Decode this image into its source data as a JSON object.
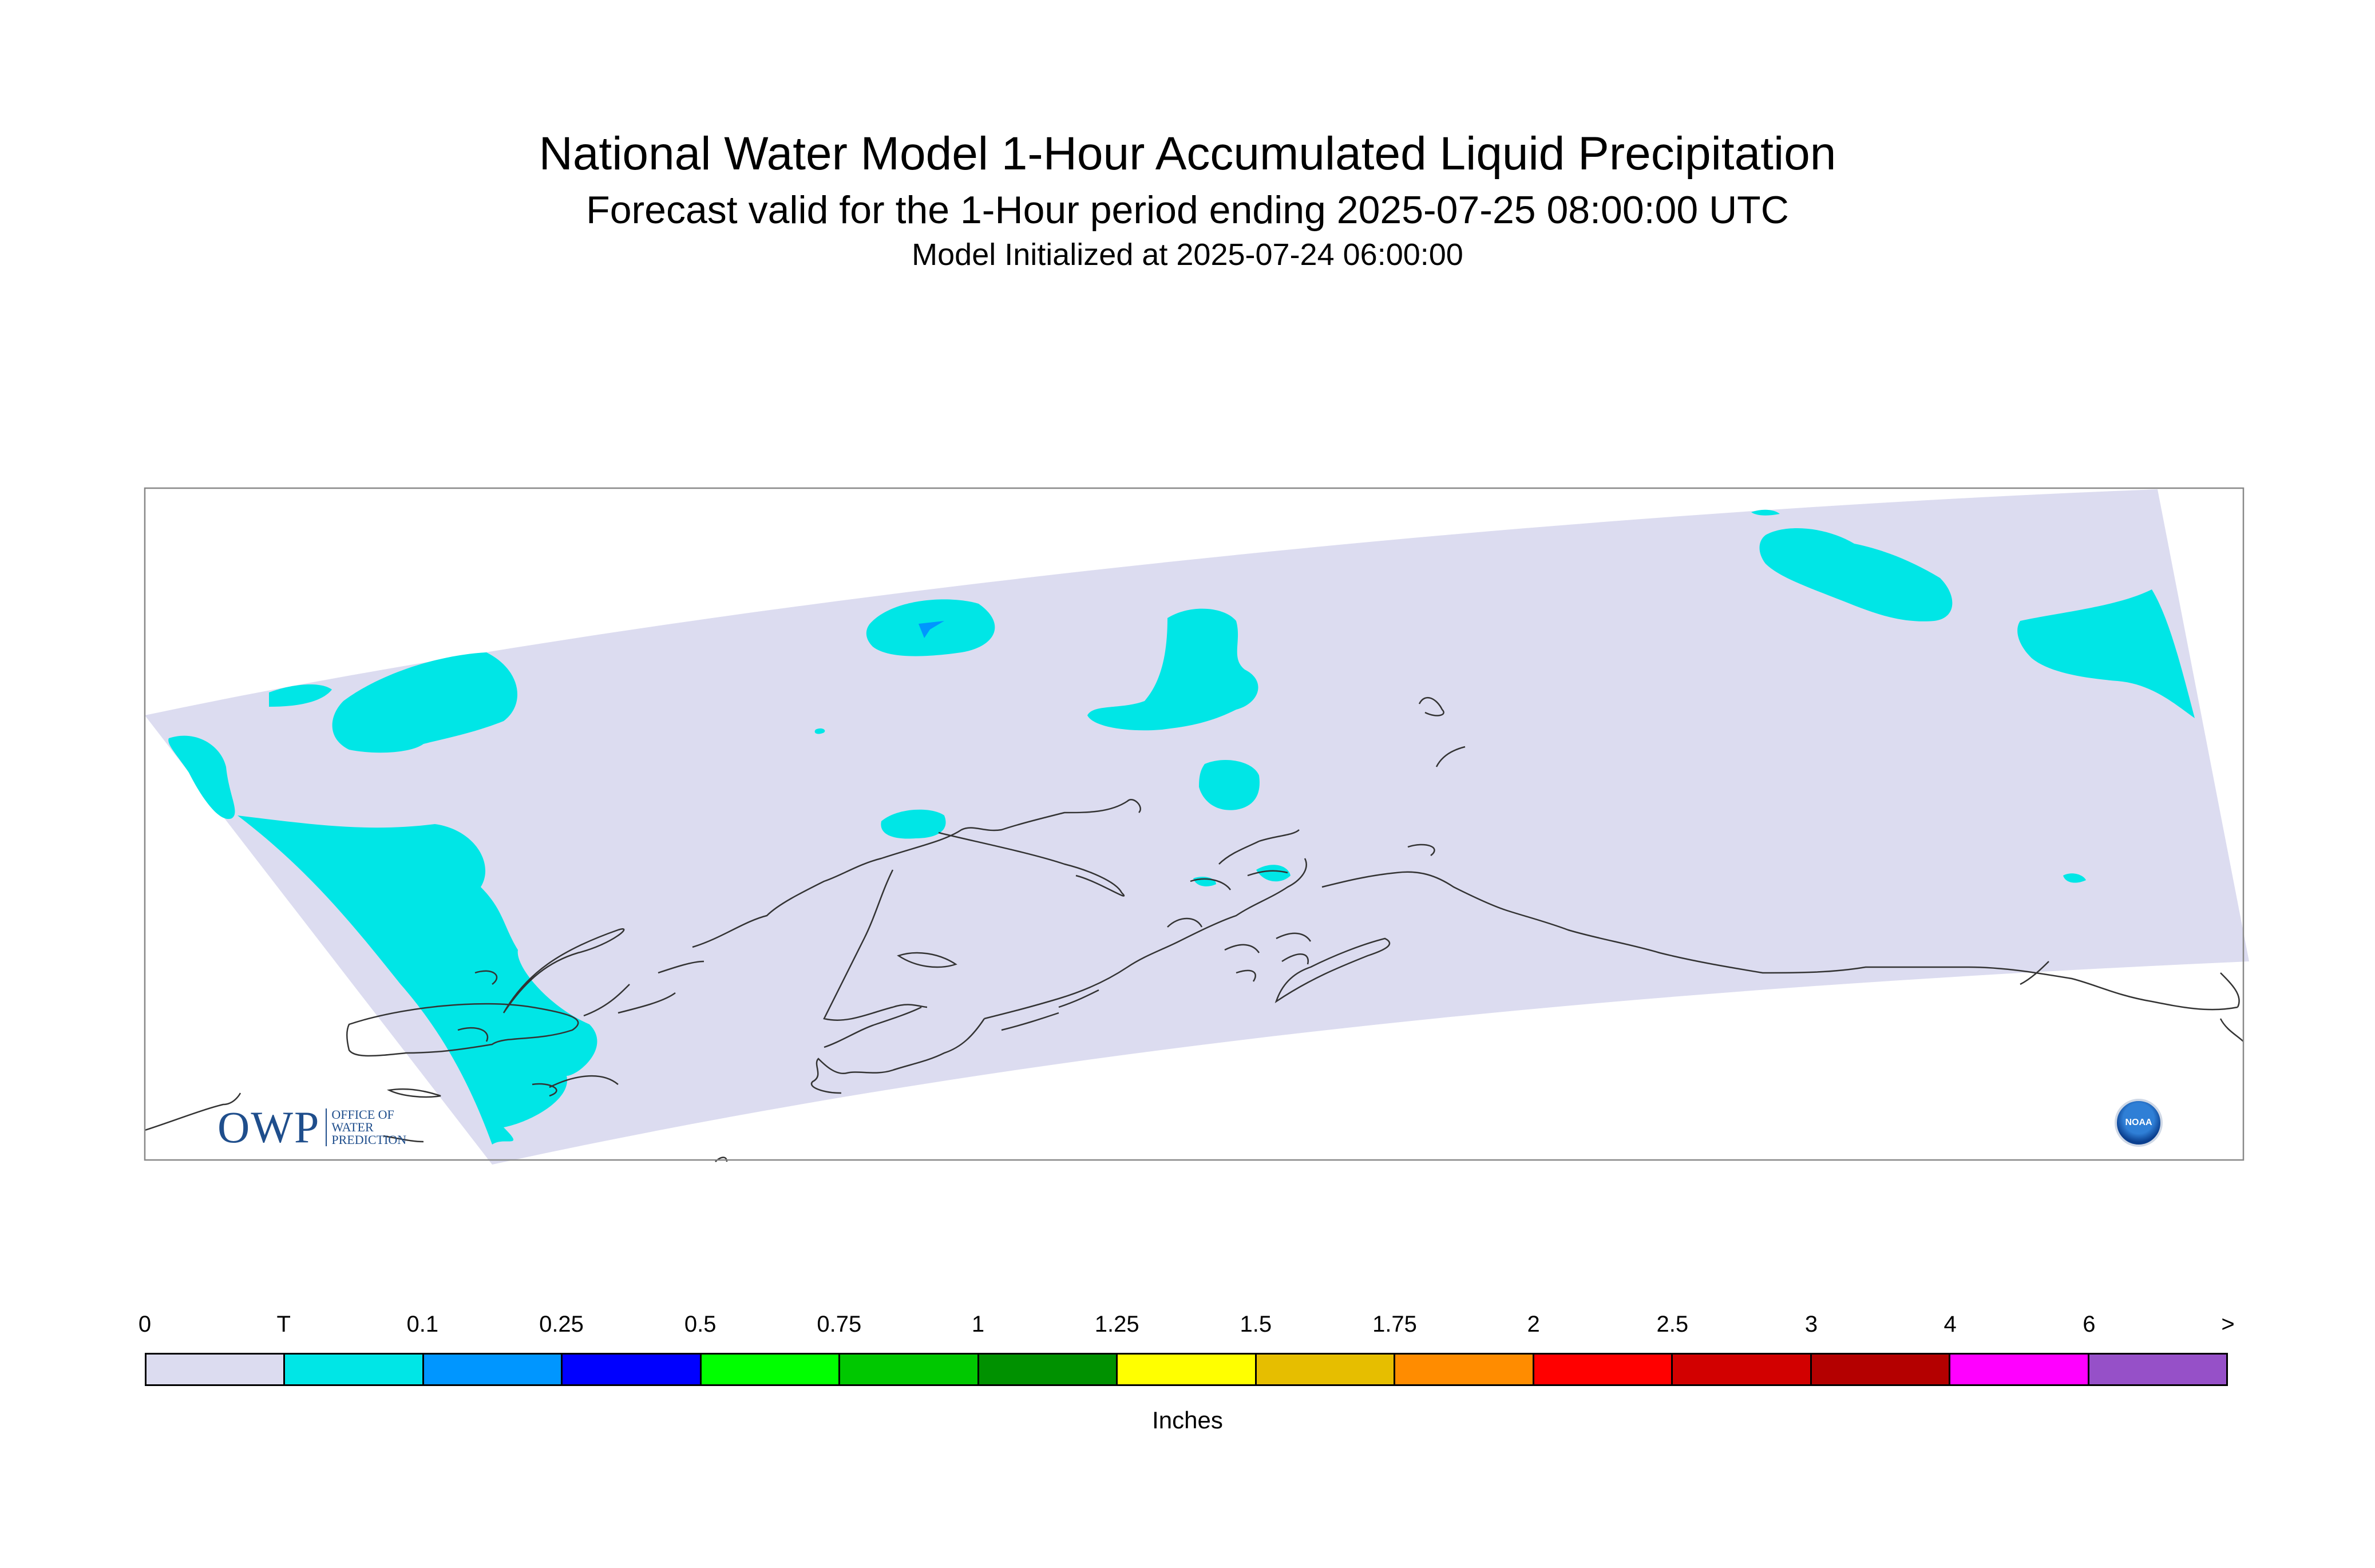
{
  "title": "National Water Model 1-Hour Accumulated Liquid Precipitation",
  "subtitle": "Forecast valid for the 1-Hour period ending 2025-07-25 08:00:00 UTC",
  "init_line": "Model Initialized at 2025-07-24 06:00:00",
  "colors": {
    "domain_fill": "#dcdcf0",
    "trace": "#00e6e6",
    "light_blue": "#0096ff",
    "outside": "#ffffff",
    "coast": "#333333",
    "frame": "#888888"
  },
  "legend": {
    "units": "Inches",
    "labels": [
      "0",
      "T",
      "0.1",
      "0.25",
      "0.5",
      "0.75",
      "1",
      "1.25",
      "1.5",
      "1.75",
      "2",
      "2.5",
      "3",
      "4",
      "6",
      ">"
    ],
    "colors": [
      "#dcdcf0",
      "#00e6e6",
      "#0096ff",
      "#0000ff",
      "#00ff00",
      "#00c800",
      "#009100",
      "#ffff00",
      "#e6be00",
      "#ff8c00",
      "#ff0000",
      "#d20000",
      "#b40000",
      "#ff00ff",
      "#9650c8"
    ]
  },
  "logos": {
    "owp_word": "OWP",
    "owp_sub": [
      "OFFICE OF",
      "WATER",
      "PREDICTION"
    ],
    "noaa": "NOAA"
  }
}
